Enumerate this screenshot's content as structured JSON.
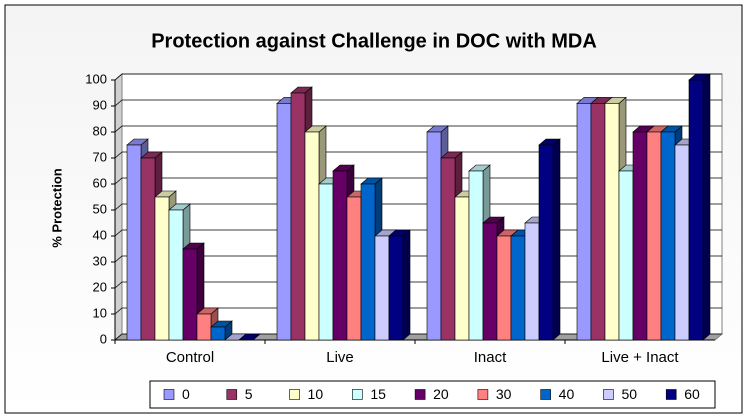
{
  "chart_data": {
    "type": "bar3d",
    "title": "Protection against Challenge in DOC with MDA",
    "y_label": "% Protection",
    "categories": [
      "Control",
      "Live",
      "Inact",
      "Live + Inact"
    ],
    "series": [
      {
        "name": "0",
        "color": "#9999FF",
        "values": [
          75,
          91,
          80,
          91
        ]
      },
      {
        "name": "5",
        "color": "#993366",
        "values": [
          70,
          95,
          70,
          91
        ]
      },
      {
        "name": "10",
        "color": "#FFFFCC",
        "values": [
          55,
          80,
          55,
          91
        ]
      },
      {
        "name": "15",
        "color": "#CCFFFF",
        "values": [
          50,
          60,
          65,
          65
        ]
      },
      {
        "name": "20",
        "color": "#660066",
        "values": [
          35,
          65,
          45,
          80
        ]
      },
      {
        "name": "30",
        "color": "#FF8080",
        "values": [
          10,
          55,
          40,
          80
        ]
      },
      {
        "name": "40",
        "color": "#0066CC",
        "values": [
          5,
          60,
          40,
          80
        ]
      },
      {
        "name": "50",
        "color": "#CCCCFF",
        "values": [
          0,
          40,
          45,
          75
        ]
      },
      {
        "name": "60",
        "color": "#000080",
        "values": [
          0,
          40,
          75,
          100
        ]
      }
    ],
    "ylim": [
      0,
      100
    ],
    "yticks": [
      0,
      10,
      20,
      30,
      40,
      50,
      60,
      70,
      80,
      90,
      100
    ],
    "grid": true,
    "legend": "bottom"
  }
}
